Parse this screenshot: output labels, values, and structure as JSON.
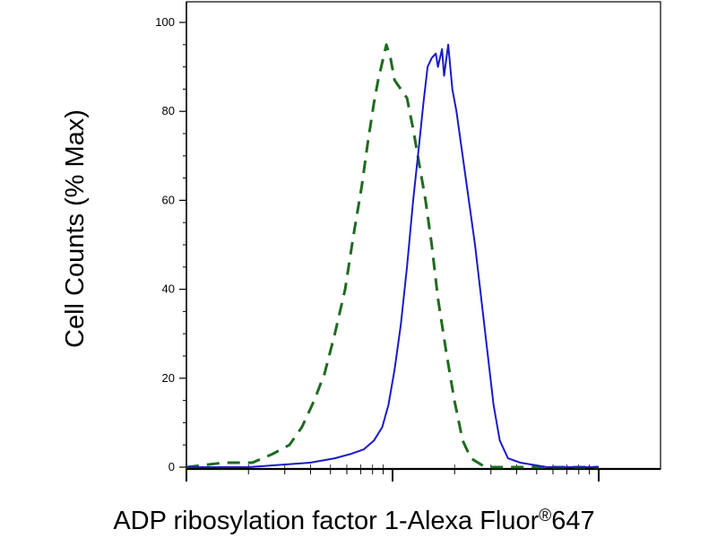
{
  "chart_data": {
    "type": "line",
    "x_scale": "log",
    "grid": false,
    "legend": "none",
    "xlabel": "ADP ribosylation factor 1-Alexa Fluor",
    "xlabel_sup": "®",
    "xlabel_suffix": "647",
    "ylabel": "Cell Counts (% Max)",
    "ylim": [
      0,
      100
    ],
    "y_ticks": [
      0,
      20,
      40,
      60,
      80,
      100
    ],
    "y_tick_labels": [
      "0",
      "20",
      "40",
      "60",
      "80",
      "100"
    ],
    "series": [
      {
        "style": "dashed",
        "color": "#1e6b1e",
        "points": [
          [
            0.0,
            0
          ],
          [
            0.18,
            1
          ],
          [
            0.32,
            1
          ],
          [
            0.42,
            3
          ],
          [
            0.5,
            5
          ],
          [
            0.56,
            9
          ],
          [
            0.62,
            15
          ],
          [
            0.67,
            21
          ],
          [
            0.72,
            30
          ],
          [
            0.77,
            40
          ],
          [
            0.81,
            52
          ],
          [
            0.85,
            63
          ],
          [
            0.88,
            73
          ],
          [
            0.91,
            82
          ],
          [
            0.93,
            87
          ],
          [
            0.95,
            91
          ],
          [
            0.97,
            95
          ],
          [
            0.99,
            92
          ],
          [
            1.01,
            87
          ],
          [
            1.04,
            85
          ],
          [
            1.07,
            83
          ],
          [
            1.1,
            76
          ],
          [
            1.13,
            68
          ],
          [
            1.16,
            60
          ],
          [
            1.19,
            50
          ],
          [
            1.22,
            38
          ],
          [
            1.26,
            26
          ],
          [
            1.3,
            15
          ],
          [
            1.34,
            6
          ],
          [
            1.38,
            2
          ],
          [
            1.45,
            0
          ],
          [
            2.0,
            0
          ]
        ]
      },
      {
        "style": "solid",
        "color": "#1a1ac8",
        "points": [
          [
            0.0,
            0
          ],
          [
            0.3,
            0
          ],
          [
            0.45,
            0.5
          ],
          [
            0.6,
            1
          ],
          [
            0.72,
            2
          ],
          [
            0.8,
            3
          ],
          [
            0.86,
            4
          ],
          [
            0.91,
            6
          ],
          [
            0.95,
            9
          ],
          [
            0.98,
            14
          ],
          [
            1.01,
            22
          ],
          [
            1.04,
            32
          ],
          [
            1.07,
            45
          ],
          [
            1.1,
            60
          ],
          [
            1.13,
            73
          ],
          [
            1.15,
            82
          ],
          [
            1.17,
            90
          ],
          [
            1.19,
            92
          ],
          [
            1.21,
            93
          ],
          [
            1.22,
            90
          ],
          [
            1.24,
            94
          ],
          [
            1.25,
            88
          ],
          [
            1.27,
            95
          ],
          [
            1.29,
            85
          ],
          [
            1.31,
            80
          ],
          [
            1.34,
            70
          ],
          [
            1.37,
            60
          ],
          [
            1.4,
            50
          ],
          [
            1.43,
            38
          ],
          [
            1.46,
            26
          ],
          [
            1.49,
            14
          ],
          [
            1.52,
            6
          ],
          [
            1.56,
            2
          ],
          [
            1.62,
            1
          ],
          [
            1.75,
            0
          ],
          [
            2.0,
            0
          ]
        ]
      }
    ]
  }
}
